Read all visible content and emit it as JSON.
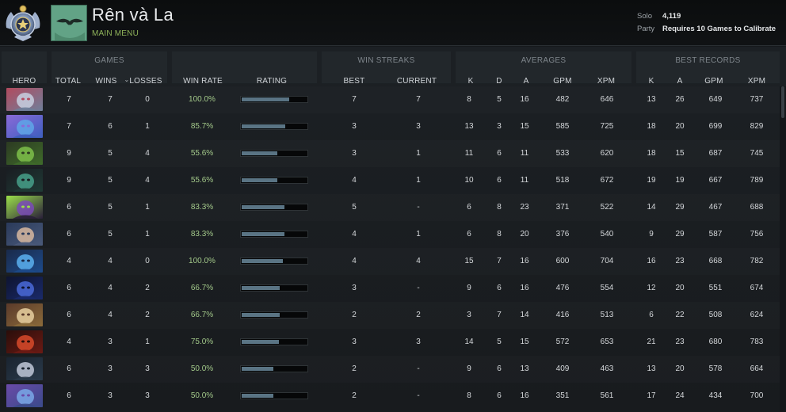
{
  "profile": {
    "name": "Rên và La",
    "main_menu_label": "MAIN MENU",
    "rank_icon": "rank-medal-icon",
    "avatar_icon": "profile-avatar-icon"
  },
  "mmr": {
    "solo_label": "Solo",
    "solo_value": "4,119",
    "party_label": "Party",
    "party_value": "Requires 10 Games to Calibrate"
  },
  "groups": {
    "games": "GAMES",
    "win_streaks": "WIN STREAKS",
    "averages": "AVERAGES",
    "best_records": "BEST RECORDS"
  },
  "columns": {
    "hero": "HERO",
    "total": "TOTAL",
    "wins": "WINS",
    "losses": "LOSSES",
    "win_rate": "WIN RATE",
    "rating": "RATING",
    "best": "BEST",
    "current": "CURRENT",
    "avg_k": "K",
    "avg_d": "D",
    "avg_a": "A",
    "avg_gpm": "GPM",
    "avg_xpm": "XPM",
    "best_k": "K",
    "best_a": "A",
    "best_gpm": "GPM",
    "best_xpm": "XPM"
  },
  "colors": {
    "accent_green": "#8fb35a",
    "win_rate_green": "#a3c98a",
    "rating_fill": "#5a7484"
  },
  "rows": [
    {
      "icon": "hero-1-icon",
      "colors": [
        "#6f7f9a",
        "#c8d0e0",
        "#b24a5e"
      ],
      "total": "7",
      "wins": "7",
      "losses": "0",
      "win_rate": "100.0%",
      "rating": 0.72,
      "best": "7",
      "current": "7",
      "k": "8",
      "d": "5",
      "a": "16",
      "gpm": "482",
      "xpm": "646",
      "bk": "13",
      "ba": "26",
      "bgpm": "649",
      "bxpm": "737"
    },
    {
      "icon": "hero-2-icon",
      "colors": [
        "#3d5fbf",
        "#5fa6e8",
        "#8a6ad8"
      ],
      "total": "7",
      "wins": "6",
      "losses": "1",
      "win_rate": "85.7%",
      "rating": 0.66,
      "best": "3",
      "current": "3",
      "k": "13",
      "d": "3",
      "a": "15",
      "gpm": "585",
      "xpm": "725",
      "bk": "18",
      "ba": "20",
      "bgpm": "699",
      "bxpm": "829"
    },
    {
      "icon": "hero-3-icon",
      "colors": [
        "#3f6b2a",
        "#7ec04a",
        "#2c3a22"
      ],
      "total": "9",
      "wins": "5",
      "losses": "4",
      "win_rate": "55.6%",
      "rating": 0.53,
      "best": "3",
      "current": "1",
      "k": "11",
      "d": "6",
      "a": "11",
      "gpm": "533",
      "xpm": "620",
      "bk": "18",
      "ba": "15",
      "bgpm": "687",
      "bxpm": "745"
    },
    {
      "icon": "hero-4-icon",
      "colors": [
        "#1f3a35",
        "#46a08a",
        "#1a1d22"
      ],
      "total": "9",
      "wins": "5",
      "losses": "4",
      "win_rate": "55.6%",
      "rating": 0.53,
      "best": "4",
      "current": "1",
      "k": "10",
      "d": "6",
      "a": "11",
      "gpm": "518",
      "xpm": "672",
      "bk": "19",
      "ba": "19",
      "bgpm": "667",
      "bxpm": "789"
    },
    {
      "icon": "hero-5-icon",
      "colors": [
        "#2a1f3a",
        "#7a4ab8",
        "#9be04a"
      ],
      "total": "6",
      "wins": "5",
      "losses": "1",
      "win_rate": "83.3%",
      "rating": 0.64,
      "best": "5",
      "current": "-",
      "k": "6",
      "d": "8",
      "a": "23",
      "gpm": "371",
      "xpm": "522",
      "bk": "14",
      "ba": "29",
      "bgpm": "467",
      "bxpm": "688"
    },
    {
      "icon": "hero-6-icon",
      "colors": [
        "#4a5a7a",
        "#d8b8a0",
        "#2a3a5a"
      ],
      "total": "6",
      "wins": "5",
      "losses": "1",
      "win_rate": "83.3%",
      "rating": 0.64,
      "best": "4",
      "current": "1",
      "k": "6",
      "d": "8",
      "a": "20",
      "gpm": "376",
      "xpm": "540",
      "bk": "9",
      "ba": "29",
      "bgpm": "587",
      "bxpm": "756"
    },
    {
      "icon": "hero-7-icon",
      "colors": [
        "#1d4a8a",
        "#5ab0f0",
        "#1a2a4a"
      ],
      "total": "4",
      "wins": "4",
      "losses": "0",
      "win_rate": "100.0%",
      "rating": 0.62,
      "best": "4",
      "current": "4",
      "k": "15",
      "d": "7",
      "a": "16",
      "gpm": "600",
      "xpm": "704",
      "bk": "16",
      "ba": "23",
      "bgpm": "668",
      "bxpm": "782"
    },
    {
      "icon": "hero-8-icon",
      "colors": [
        "#1a2a6a",
        "#4a6ad8",
        "#0e1430"
      ],
      "total": "6",
      "wins": "4",
      "losses": "2",
      "win_rate": "66.7%",
      "rating": 0.57,
      "best": "3",
      "current": "-",
      "k": "9",
      "d": "6",
      "a": "16",
      "gpm": "476",
      "xpm": "554",
      "bk": "12",
      "ba": "20",
      "bgpm": "551",
      "bxpm": "674"
    },
    {
      "icon": "hero-9-icon",
      "colors": [
        "#8a6a3a",
        "#e8d0a0",
        "#5a3a2a"
      ],
      "total": "6",
      "wins": "4",
      "losses": "2",
      "win_rate": "66.7%",
      "rating": 0.57,
      "best": "2",
      "current": "2",
      "k": "3",
      "d": "7",
      "a": "14",
      "gpm": "416",
      "xpm": "513",
      "bk": "6",
      "ba": "22",
      "bgpm": "508",
      "bxpm": "624"
    },
    {
      "icon": "hero-10-icon",
      "colors": [
        "#6a1a14",
        "#d84a2a",
        "#2a0e0a"
      ],
      "total": "4",
      "wins": "3",
      "losses": "1",
      "win_rate": "75.0%",
      "rating": 0.56,
      "best": "3",
      "current": "3",
      "k": "14",
      "d": "5",
      "a": "15",
      "gpm": "572",
      "xpm": "653",
      "bk": "21",
      "ba": "23",
      "bgpm": "680",
      "bxpm": "783"
    },
    {
      "icon": "hero-11-icon",
      "colors": [
        "#2a3a4a",
        "#c0c8d8",
        "#1a2430"
      ],
      "total": "6",
      "wins": "3",
      "losses": "3",
      "win_rate": "50.0%",
      "rating": 0.48,
      "best": "2",
      "current": "-",
      "k": "9",
      "d": "6",
      "a": "13",
      "gpm": "409",
      "xpm": "463",
      "bk": "13",
      "ba": "20",
      "bgpm": "578",
      "bxpm": "664"
    },
    {
      "icon": "hero-12-icon",
      "colors": [
        "#3a4a8a",
        "#7aa8e8",
        "#6a4aa8"
      ],
      "total": "6",
      "wins": "3",
      "losses": "3",
      "win_rate": "50.0%",
      "rating": 0.48,
      "best": "2",
      "current": "-",
      "k": "8",
      "d": "6",
      "a": "16",
      "gpm": "351",
      "xpm": "561",
      "bk": "17",
      "ba": "24",
      "bgpm": "434",
      "bxpm": "700"
    }
  ]
}
